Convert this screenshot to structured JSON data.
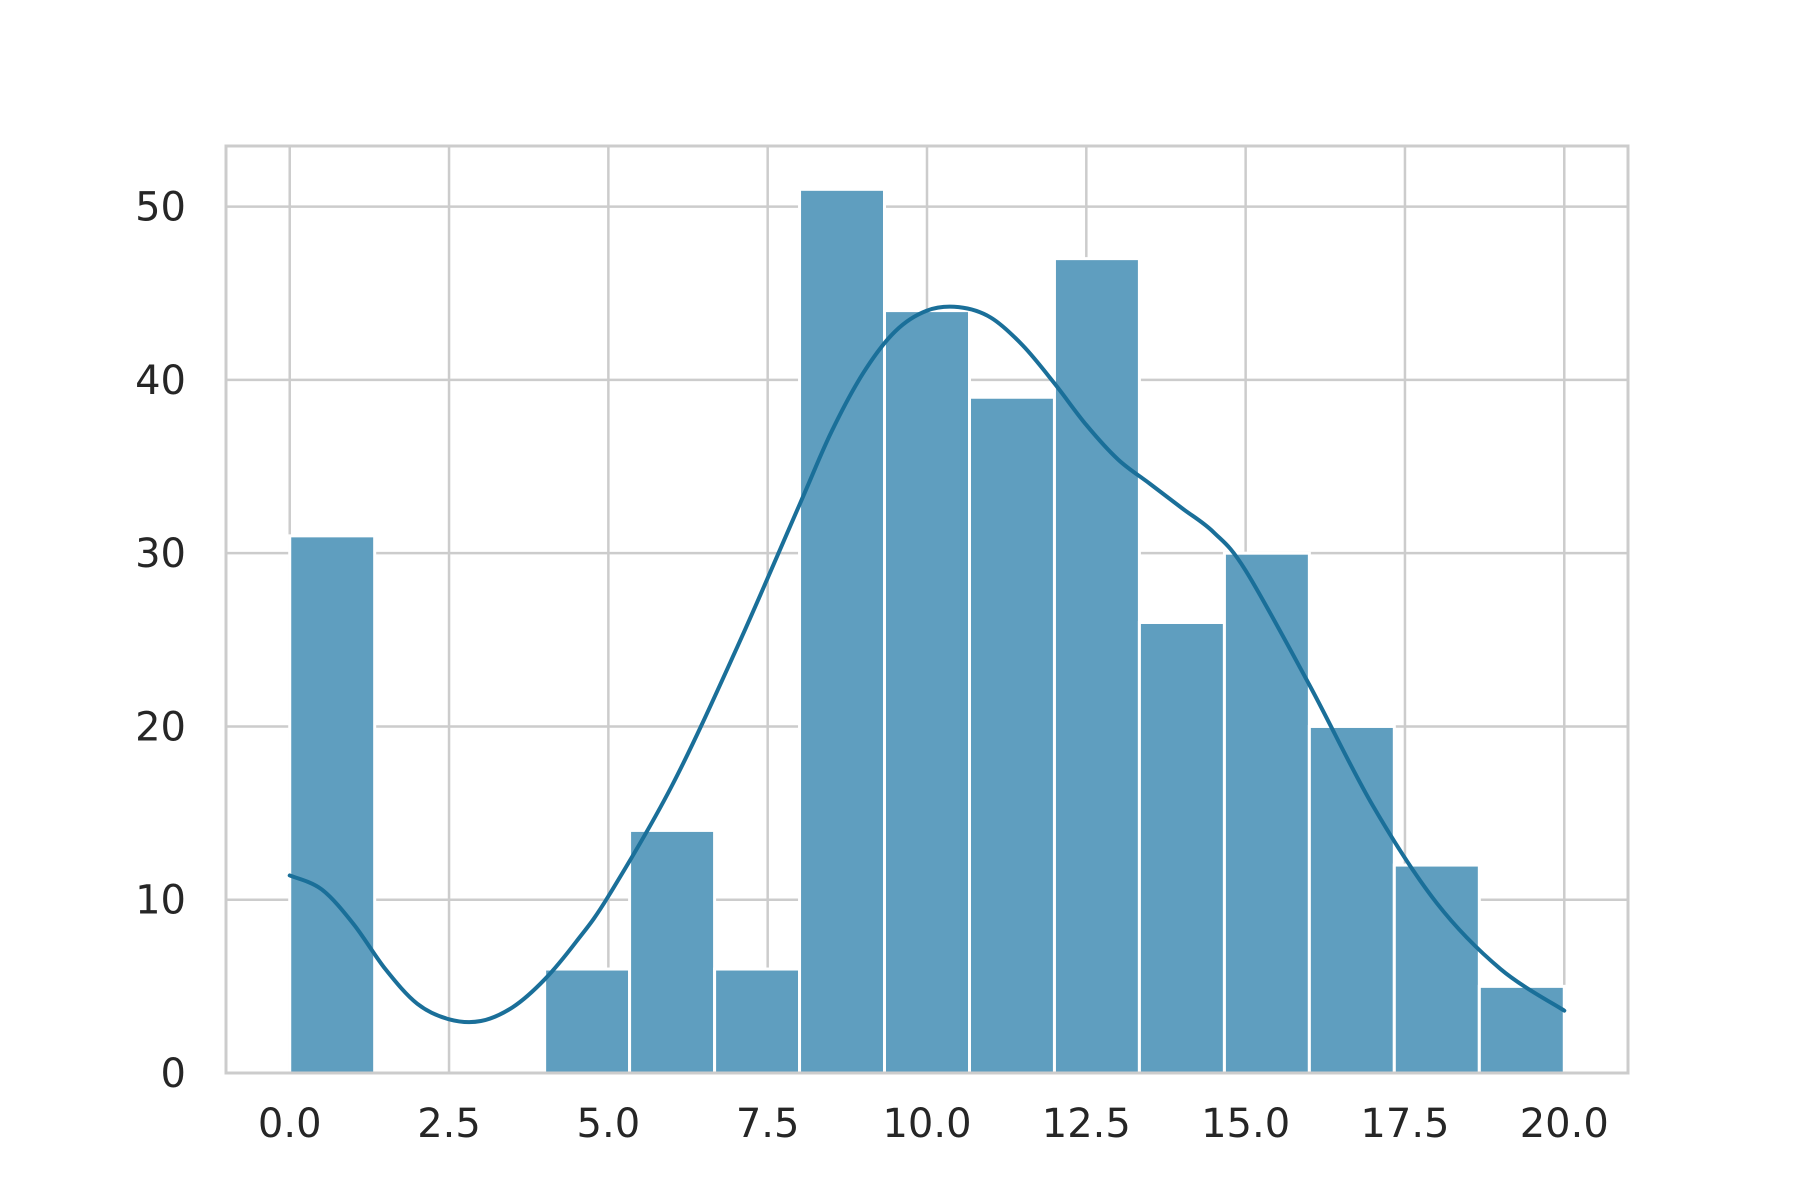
{
  "chart_data": {
    "type": "bar",
    "subtype": "histogram-with-kde",
    "title": "",
    "xlabel": "",
    "ylabel": "",
    "bin_edges": [
      0.0,
      1.333,
      2.667,
      4.0,
      5.333,
      6.667,
      8.0,
      9.333,
      10.667,
      12.0,
      13.333,
      14.667,
      16.0,
      17.333,
      18.667,
      20.0
    ],
    "values": [
      31,
      0,
      0,
      6,
      14,
      6,
      51,
      44,
      39,
      47,
      26,
      30,
      20,
      12,
      5
    ],
    "kde": {
      "x": [
        0.0,
        0.5,
        1.0,
        1.5,
        2.0,
        2.5,
        3.0,
        3.5,
        4.0,
        4.5,
        5.0,
        6.0,
        7.0,
        8.0,
        8.5,
        9.0,
        9.5,
        10.0,
        10.5,
        11.0,
        11.5,
        12.0,
        12.5,
        13.0,
        13.5,
        14.0,
        14.5,
        15.0,
        16.0,
        17.0,
        18.0,
        19.0,
        20.0
      ],
      "y": [
        11.4,
        10.6,
        8.6,
        6.0,
        4.0,
        3.1,
        3.0,
        3.8,
        5.4,
        7.6,
        10.2,
        16.6,
        24.4,
        32.8,
        37.0,
        40.4,
        42.8,
        44.0,
        44.2,
        43.6,
        42.0,
        39.8,
        37.4,
        35.4,
        34.0,
        32.6,
        31.2,
        29.0,
        22.4,
        15.4,
        9.8,
        6.0,
        3.6
      ]
    },
    "xlim": [
      -1.0,
      21.0
    ],
    "ylim": [
      0,
      53.5
    ],
    "xticks": [
      "0.0",
      "2.5",
      "5.0",
      "7.5",
      "10.0",
      "12.5",
      "15.0",
      "17.5",
      "20.0"
    ],
    "yticks": [
      "0",
      "10",
      "20",
      "30",
      "40",
      "50"
    ],
    "grid": true,
    "legend": "none",
    "colors": {
      "bar_fill": "#5f9ebf",
      "kde_line": "#1a6f99",
      "grid": "#cccccc",
      "spine": "#cccccc",
      "text": "#262626"
    }
  }
}
